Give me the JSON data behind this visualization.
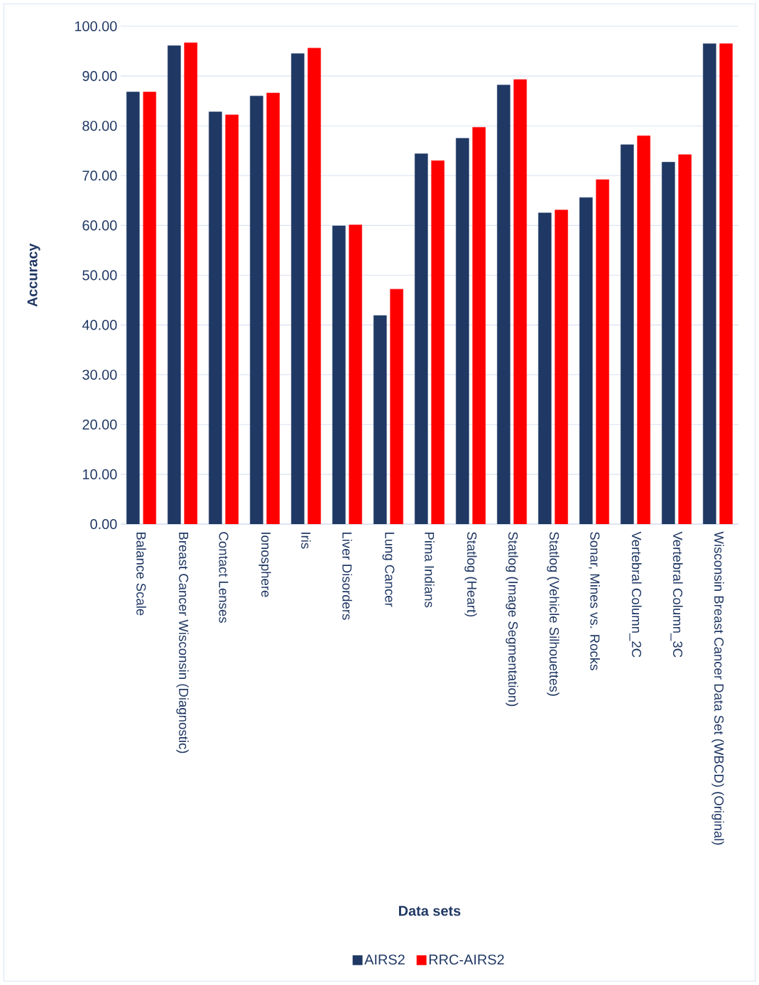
{
  "chart_data": {
    "type": "bar",
    "xlabel": "Data sets",
    "ylabel": "Accuracy",
    "categories": [
      "Balance Scale",
      "Breast Cancer Wisconsin (Diagnostic)",
      "Contact Lenses",
      "Ionosphere",
      "Iris",
      "Liver Disorders",
      "Lung Cancer",
      "Pima Indians",
      "Statlog (Heart)",
      "Statlog (Image Segmentation)",
      "Statlog (Vehicle Silhouettes)",
      "Sonar, Mines vs. Rocks",
      "Vertebral Column_2C",
      "Vertebral Column_3C",
      "Wisconsin Breast Cancer Data Set (WBCD) (Original)"
    ],
    "series": [
      {
        "name": "AIRS2",
        "color": "#1f3864",
        "values": [
          86.8,
          96.1,
          82.8,
          86.0,
          94.5,
          59.9,
          41.9,
          74.4,
          77.5,
          88.2,
          62.5,
          65.6,
          76.2,
          72.7,
          96.5
        ]
      },
      {
        "name": "RRC-AIRS2",
        "color": "#ff0000",
        "values": [
          86.8,
          96.7,
          82.2,
          86.6,
          95.6,
          60.1,
          47.2,
          73.0,
          79.7,
          89.3,
          63.1,
          69.2,
          78.0,
          74.2,
          96.5
        ]
      }
    ],
    "ylim": [
      0,
      100
    ],
    "yticks": [
      {
        "value": 0,
        "label": "0.00"
      },
      {
        "value": 10,
        "label": "10.00"
      },
      {
        "value": 20,
        "label": "20.00"
      },
      {
        "value": 30,
        "label": "30.00"
      },
      {
        "value": 40,
        "label": "40.00"
      },
      {
        "value": 50,
        "label": "50.00"
      },
      {
        "value": 60,
        "label": "60.00"
      },
      {
        "value": 70,
        "label": "70.00"
      },
      {
        "value": 80,
        "label": "80.00"
      },
      {
        "value": 90,
        "label": "90.00"
      },
      {
        "value": 100,
        "label": "100.00"
      }
    ],
    "grid": "y",
    "legend": "bottom"
  }
}
